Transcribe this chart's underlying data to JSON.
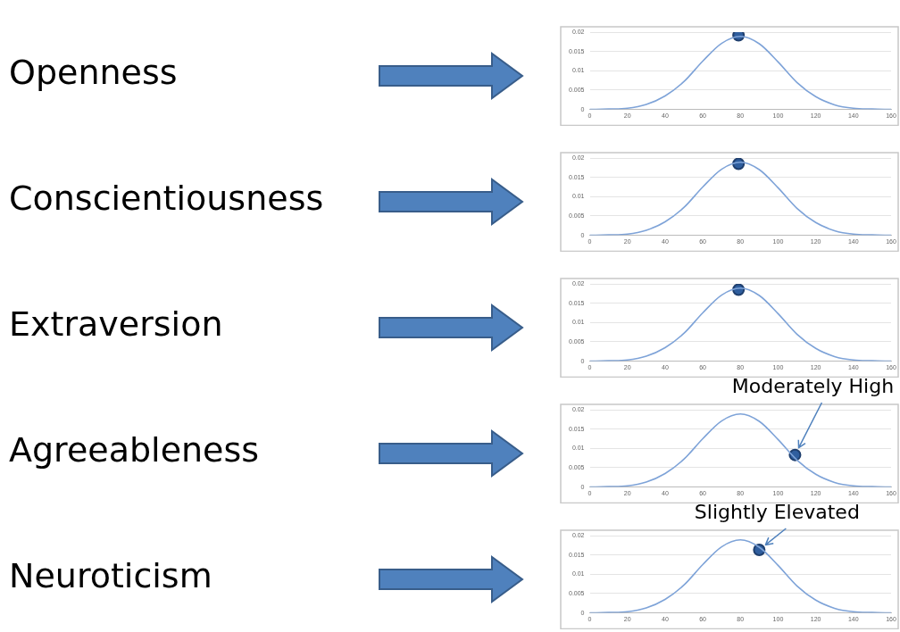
{
  "chart_data": [
    {
      "type": "line",
      "annotations": [
        "Openness"
      ],
      "xlim": [
        0,
        160
      ],
      "xticks": [
        0,
        20,
        40,
        60,
        80,
        100,
        120,
        140,
        160
      ],
      "ylim": [
        0,
        0.02
      ],
      "yticks": [
        0,
        0.005,
        0.01,
        0.015,
        0.02
      ],
      "grid": "y",
      "legend": false,
      "series": [
        {
          "type": "line",
          "color": "#7ea3d8",
          "marker": "none",
          "x": [
            0,
            10,
            20,
            30,
            40,
            50,
            60,
            70,
            80,
            90,
            100,
            110,
            120,
            130,
            140,
            150,
            160
          ],
          "values": [
            0,
            0.0001,
            0.0003,
            0.0013,
            0.0035,
            0.0072,
            0.0125,
            0.0171,
            0.0189,
            0.017,
            0.0123,
            0.007,
            0.0033,
            0.0012,
            0.0003,
            0.0001,
            0
          ]
        },
        {
          "type": "scatter",
          "color": "#2f5e9e",
          "marker": "circle",
          "x": [
            79
          ],
          "values": [
            0.0192
          ]
        }
      ]
    },
    {
      "type": "line",
      "annotations": [
        "Conscientiousness"
      ],
      "xlim": [
        0,
        160
      ],
      "xticks": [
        0,
        20,
        40,
        60,
        80,
        100,
        120,
        140,
        160
      ],
      "ylim": [
        0,
        0.02
      ],
      "yticks": [
        0,
        0.005,
        0.01,
        0.015,
        0.02
      ],
      "grid": "y",
      "legend": false,
      "series": [
        {
          "type": "line",
          "color": "#7ea3d8",
          "marker": "none",
          "x": [
            0,
            10,
            20,
            30,
            40,
            50,
            60,
            70,
            80,
            90,
            100,
            110,
            120,
            130,
            140,
            150,
            160
          ],
          "values": [
            0,
            0.0001,
            0.0003,
            0.0013,
            0.0035,
            0.0072,
            0.0125,
            0.0171,
            0.0189,
            0.017,
            0.0123,
            0.007,
            0.0033,
            0.0012,
            0.0003,
            0.0001,
            0
          ]
        },
        {
          "type": "scatter",
          "color": "#2f5e9e",
          "marker": "circle",
          "x": [
            79
          ],
          "values": [
            0.0185
          ]
        }
      ]
    },
    {
      "type": "line",
      "annotations": [
        "Extraversion"
      ],
      "xlim": [
        0,
        160
      ],
      "xticks": [
        0,
        20,
        40,
        60,
        80,
        100,
        120,
        140,
        160
      ],
      "ylim": [
        0,
        0.02
      ],
      "yticks": [
        0,
        0.005,
        0.01,
        0.015,
        0.02
      ],
      "grid": "y",
      "legend": false,
      "series": [
        {
          "type": "line",
          "color": "#7ea3d8",
          "marker": "none",
          "x": [
            0,
            10,
            20,
            30,
            40,
            50,
            60,
            70,
            80,
            90,
            100,
            110,
            120,
            130,
            140,
            150,
            160
          ],
          "values": [
            0,
            0.0001,
            0.0003,
            0.0013,
            0.0035,
            0.0072,
            0.0125,
            0.0171,
            0.0189,
            0.017,
            0.0123,
            0.007,
            0.0033,
            0.0012,
            0.0003,
            0.0001,
            0
          ]
        },
        {
          "type": "scatter",
          "color": "#2f5e9e",
          "marker": "circle",
          "x": [
            79
          ],
          "values": [
            0.0185
          ]
        }
      ]
    },
    {
      "type": "line",
      "annotations": [
        "Agreeableness",
        {
          "text": "Moderately High",
          "x": 109,
          "y": 0.0083
        }
      ],
      "xlim": [
        0,
        160
      ],
      "xticks": [
        0,
        20,
        40,
        60,
        80,
        100,
        120,
        140,
        160
      ],
      "ylim": [
        0,
        0.02
      ],
      "yticks": [
        0,
        0.005,
        0.01,
        0.015,
        0.02
      ],
      "grid": "y",
      "legend": false,
      "series": [
        {
          "type": "line",
          "color": "#7ea3d8",
          "marker": "none",
          "x": [
            0,
            10,
            20,
            30,
            40,
            50,
            60,
            70,
            80,
            90,
            100,
            110,
            120,
            130,
            140,
            150,
            160
          ],
          "values": [
            0,
            0.0001,
            0.0003,
            0.0013,
            0.0035,
            0.0072,
            0.0125,
            0.0171,
            0.0189,
            0.017,
            0.0123,
            0.007,
            0.0033,
            0.0012,
            0.0003,
            0.0001,
            0
          ]
        },
        {
          "type": "scatter",
          "color": "#2f5e9e",
          "marker": "circle",
          "x": [
            109
          ],
          "values": [
            0.0083
          ]
        }
      ]
    },
    {
      "type": "line",
      "annotations": [
        "Neuroticism",
        {
          "text": "Slightly Elevated",
          "x": 90,
          "y": 0.0163
        }
      ],
      "xlim": [
        0,
        160
      ],
      "xticks": [
        0,
        20,
        40,
        60,
        80,
        100,
        120,
        140,
        160
      ],
      "ylim": [
        0,
        0.02
      ],
      "yticks": [
        0,
        0.005,
        0.01,
        0.015,
        0.02
      ],
      "grid": "y",
      "legend": false,
      "series": [
        {
          "type": "line",
          "color": "#7ea3d8",
          "marker": "none",
          "x": [
            0,
            10,
            20,
            30,
            40,
            50,
            60,
            70,
            80,
            90,
            100,
            110,
            120,
            130,
            140,
            150,
            160
          ],
          "values": [
            0,
            0.0001,
            0.0003,
            0.0013,
            0.0035,
            0.0072,
            0.0125,
            0.0171,
            0.0189,
            0.017,
            0.0123,
            0.007,
            0.0033,
            0.0012,
            0.0003,
            0.0001,
            0
          ]
        },
        {
          "type": "scatter",
          "color": "#2f5e9e",
          "marker": "circle",
          "x": [
            90
          ],
          "values": [
            0.0163
          ]
        }
      ]
    }
  ]
}
